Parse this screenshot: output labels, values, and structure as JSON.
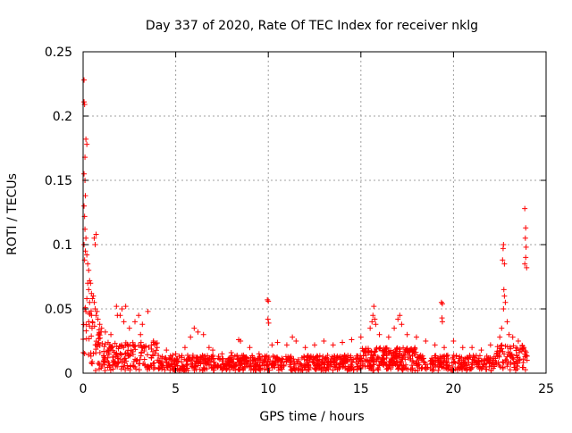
{
  "chart_data": {
    "type": "scatter",
    "title": "Day 337 of 2020, Rate Of TEC Index for receiver nklg",
    "xlabel": "GPS time / hours",
    "ylabel": "ROTI / TECUs",
    "xlim": [
      0,
      25
    ],
    "ylim": [
      0,
      0.25
    ],
    "xticks": [
      "0",
      "5",
      "10",
      "15",
      "20",
      "25"
    ],
    "yticks": [
      "0",
      "0.05",
      "0.1",
      "0.15",
      "0.2",
      "0.25"
    ],
    "grid": true,
    "marker": "plus",
    "color": "#ff0000",
    "series": [
      {
        "points": [
          [
            0.05,
            0.228
          ],
          [
            0.05,
            0.211
          ],
          [
            0.08,
            0.209
          ],
          [
            0.15,
            0.182
          ],
          [
            0.2,
            0.178
          ],
          [
            0.1,
            0.168
          ],
          [
            0.05,
            0.155
          ],
          [
            0.1,
            0.15
          ],
          [
            0.12,
            0.138
          ],
          [
            0.08,
            0.122
          ],
          [
            0.05,
            0.13
          ],
          [
            0.1,
            0.112
          ],
          [
            0.15,
            0.105
          ],
          [
            0.12,
            0.095
          ],
          [
            0.08,
            0.088
          ],
          [
            0.05,
            0.1
          ],
          [
            0.2,
            0.092
          ],
          [
            0.25,
            0.085
          ],
          [
            0.3,
            0.08
          ],
          [
            0.35,
            0.072
          ],
          [
            0.3,
            0.065
          ],
          [
            0.4,
            0.07
          ],
          [
            0.45,
            0.062
          ],
          [
            0.5,
            0.058
          ],
          [
            0.55,
            0.06
          ],
          [
            0.6,
            0.055
          ],
          [
            0.65,
            0.05
          ],
          [
            0.7,
            0.045
          ],
          [
            0.75,
            0.048
          ],
          [
            0.5,
            0.04
          ],
          [
            0.8,
            0.042
          ],
          [
            0.9,
            0.038
          ],
          [
            0.1,
            0.05
          ],
          [
            0.2,
            0.058
          ],
          [
            0.25,
            0.07
          ],
          [
            0.35,
            0.055
          ],
          [
            0.6,
            0.105
          ],
          [
            0.65,
            0.1
          ],
          [
            0.7,
            0.108
          ],
          [
            0.15,
            0.048
          ],
          [
            0.3,
            0.04
          ],
          [
            1.0,
            0.035
          ],
          [
            1.2,
            0.032
          ],
          [
            1.5,
            0.03
          ],
          [
            1.8,
            0.052
          ],
          [
            1.85,
            0.045
          ],
          [
            2.0,
            0.045
          ],
          [
            2.1,
            0.05
          ],
          [
            2.2,
            0.04
          ],
          [
            2.3,
            0.052
          ],
          [
            2.5,
            0.035
          ],
          [
            2.8,
            0.04
          ],
          [
            3.0,
            0.045
          ],
          [
            3.2,
            0.038
          ],
          [
            3.1,
            0.03
          ],
          [
            3.5,
            0.048
          ],
          [
            3.8,
            0.025
          ],
          [
            4.0,
            0.02
          ],
          [
            4.5,
            0.018
          ],
          [
            5.0,
            0.015
          ],
          [
            5.5,
            0.02
          ],
          [
            5.8,
            0.028
          ],
          [
            6.0,
            0.035
          ],
          [
            6.2,
            0.032
          ],
          [
            6.5,
            0.03
          ],
          [
            6.8,
            0.02
          ],
          [
            7.0,
            0.018
          ],
          [
            7.5,
            0.015
          ],
          [
            8.0,
            0.016
          ],
          [
            8.4,
            0.026
          ],
          [
            8.5,
            0.025
          ],
          [
            9.0,
            0.02
          ],
          [
            9.5,
            0.015
          ],
          [
            9.95,
            0.057
          ],
          [
            10.0,
            0.056
          ],
          [
            9.98,
            0.042
          ],
          [
            10.02,
            0.039
          ],
          [
            10.2,
            0.022
          ],
          [
            10.5,
            0.024
          ],
          [
            11.0,
            0.022
          ],
          [
            11.3,
            0.028
          ],
          [
            11.5,
            0.025
          ],
          [
            12.0,
            0.02
          ],
          [
            12.5,
            0.022
          ],
          [
            13.0,
            0.025
          ],
          [
            13.5,
            0.022
          ],
          [
            14.0,
            0.024
          ],
          [
            14.5,
            0.026
          ],
          [
            15.0,
            0.028
          ],
          [
            15.5,
            0.035
          ],
          [
            15.6,
            0.04
          ],
          [
            15.65,
            0.045
          ],
          [
            15.7,
            0.052
          ],
          [
            15.75,
            0.042
          ],
          [
            15.8,
            0.038
          ],
          [
            16.0,
            0.03
          ],
          [
            16.5,
            0.028
          ],
          [
            16.8,
            0.035
          ],
          [
            17.0,
            0.042
          ],
          [
            17.1,
            0.045
          ],
          [
            17.2,
            0.038
          ],
          [
            17.5,
            0.03
          ],
          [
            18.0,
            0.028
          ],
          [
            18.5,
            0.025
          ],
          [
            19.0,
            0.022
          ],
          [
            19.35,
            0.055
          ],
          [
            19.4,
            0.054
          ],
          [
            19.38,
            0.043
          ],
          [
            19.4,
            0.04
          ],
          [
            19.5,
            0.02
          ],
          [
            20.0,
            0.025
          ],
          [
            20.5,
            0.02
          ],
          [
            21.0,
            0.02
          ],
          [
            21.5,
            0.018
          ],
          [
            22.0,
            0.022
          ],
          [
            22.5,
            0.028
          ],
          [
            22.6,
            0.035
          ],
          [
            22.7,
            0.05
          ],
          [
            22.75,
            0.06
          ],
          [
            22.72,
            0.065
          ],
          [
            22.8,
            0.055
          ],
          [
            22.65,
            0.088
          ],
          [
            22.68,
            0.097
          ],
          [
            22.7,
            0.1
          ],
          [
            22.75,
            0.085
          ],
          [
            22.9,
            0.04
          ],
          [
            23.0,
            0.03
          ],
          [
            23.2,
            0.028
          ],
          [
            23.5,
            0.025
          ],
          [
            23.8,
            0.02
          ],
          [
            23.85,
            0.128
          ],
          [
            23.9,
            0.113
          ],
          [
            23.88,
            0.105
          ],
          [
            23.92,
            0.098
          ],
          [
            23.85,
            0.085
          ],
          [
            23.95,
            0.082
          ],
          [
            23.9,
            0.09
          ]
        ]
      }
    ]
  }
}
